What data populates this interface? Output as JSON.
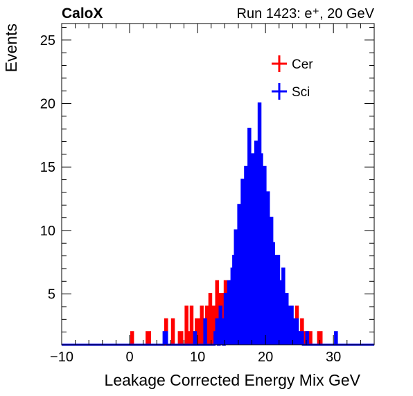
{
  "header": {
    "left": "CaloX",
    "right": "Run 1423: e⁺, 20 GeV"
  },
  "legend": {
    "placement": "top-right",
    "entries": [
      {
        "name": "Cer",
        "color": "#ff0000"
      },
      {
        "name": "Sci",
        "color": "#0000ff"
      }
    ]
  },
  "chart_data": {
    "type": "histogram",
    "title": "",
    "xlabel": "Leakage Corrected Energy Mix GeV",
    "ylabel": "Events",
    "xlim": [
      -10,
      36
    ],
    "ylim": [
      1,
      26.3
    ],
    "bin_width": 0.25,
    "x_ticks": [
      -10,
      0,
      10,
      20,
      30
    ],
    "y_ticks": [
      5,
      10,
      15,
      20,
      25
    ],
    "grid": false,
    "series": [
      {
        "name": "Cer",
        "color": "#ff0000",
        "x": [
          0.375,
          2.625,
          2.875,
          5.375,
          6.375,
          7.375,
          7.625,
          8.375,
          8.875,
          9.125,
          9.375,
          9.875,
          10.125,
          10.375,
          10.625,
          10.875,
          11.125,
          11.375,
          11.625,
          11.875,
          12.125,
          12.375,
          12.625,
          12.875,
          13.125,
          13.375,
          13.625,
          13.875,
          14.125,
          14.375,
          14.625,
          14.875,
          15.125,
          15.375,
          15.625,
          15.875,
          16.125,
          16.375,
          16.625,
          16.875,
          17.125,
          17.375,
          17.625,
          17.875,
          18.125,
          18.375,
          18.625,
          18.875,
          19.125,
          19.375,
          19.625,
          19.875,
          20.125,
          20.375,
          20.625,
          20.875,
          21.125,
          21.375,
          21.625,
          21.875,
          22.125,
          22.375,
          22.625,
          22.875,
          23.125,
          23.375,
          23.625,
          23.875,
          24.125,
          24.375,
          24.625,
          24.875,
          25.125,
          25.375,
          25.625,
          26.125,
          26.625,
          27.875,
          28.125
        ],
        "values": [
          2,
          2,
          2,
          3,
          3,
          2,
          2,
          4,
          2,
          4,
          2,
          3,
          2,
          3,
          4,
          3,
          2,
          4,
          2,
          5,
          3,
          4,
          4,
          6,
          3,
          5,
          5,
          4,
          6,
          3,
          5,
          6,
          4,
          6,
          4,
          7,
          4,
          6,
          5,
          7,
          4,
          6,
          5,
          6,
          4,
          7,
          5,
          6,
          3,
          5,
          4,
          4,
          2,
          3,
          3,
          3,
          3,
          3,
          5,
          3,
          4,
          3,
          3,
          2,
          4,
          2,
          3,
          2,
          2,
          2,
          4,
          2,
          2,
          3,
          2,
          2,
          2,
          2,
          2
        ]
      },
      {
        "name": "Sci",
        "color": "#0000ff",
        "x": [
          5.125,
          5.375,
          9.625,
          11.125,
          12.625,
          12.875,
          13.375,
          13.625,
          14.125,
          14.375,
          14.625,
          14.875,
          15.125,
          15.375,
          15.625,
          15.875,
          16.125,
          16.375,
          16.625,
          16.875,
          17.125,
          17.375,
          17.625,
          17.875,
          18.125,
          18.375,
          18.625,
          18.875,
          19.125,
          19.375,
          19.625,
          19.875,
          20.125,
          20.375,
          20.625,
          20.875,
          21.125,
          21.375,
          21.625,
          21.875,
          22.125,
          22.375,
          22.625,
          22.875,
          23.125,
          23.375,
          23.625,
          23.875,
          24.125,
          24.375,
          24.625,
          24.875,
          25.125,
          25.375,
          26.125,
          30.375
        ],
        "values": [
          2,
          2,
          2,
          3,
          2,
          3,
          4,
          3,
          5,
          4,
          6,
          5,
          7,
          8,
          10,
          9,
          12,
          11,
          14,
          13,
          15,
          12,
          18,
          14,
          16,
          13,
          17,
          15,
          20,
          16,
          14,
          15,
          12,
          13,
          10,
          11,
          9,
          8,
          7,
          8,
          6,
          5,
          7,
          4,
          5,
          4,
          3,
          4,
          3,
          2,
          3,
          2,
          2,
          2,
          2,
          2
        ]
      }
    ]
  }
}
